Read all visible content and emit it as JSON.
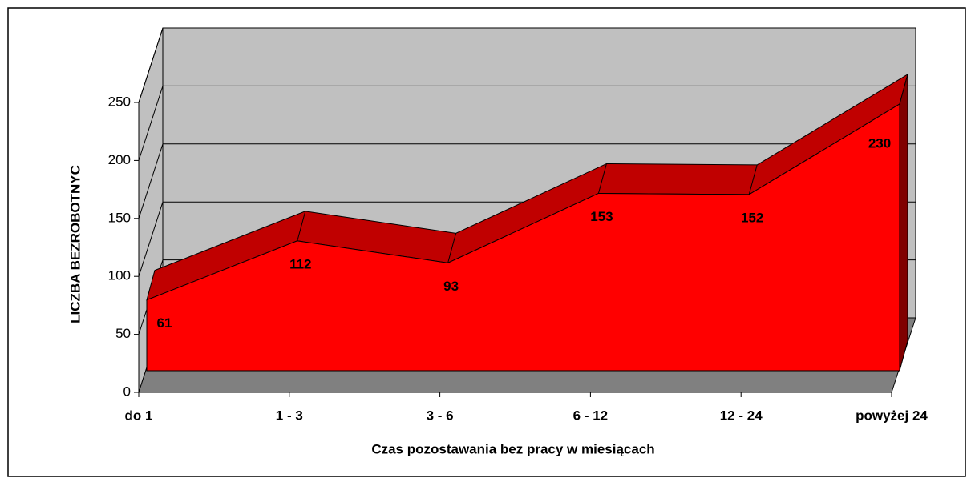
{
  "chart_data": {
    "type": "area3d",
    "y_label": "LICZBA BEZROBOTNYC",
    "x_label": "Czas pozostawania bez pracy w miesiącach",
    "categories": [
      "do 1",
      "1 - 3",
      "3 - 6",
      "6 - 12",
      "12 - 24",
      "powyżej 24"
    ],
    "values": [
      61,
      112,
      93,
      153,
      152,
      230
    ],
    "color": "#ff0000",
    "ylim": [
      0,
      250
    ],
    "yticks": [
      0,
      50,
      100,
      150,
      200,
      250
    ],
    "grid": true
  }
}
